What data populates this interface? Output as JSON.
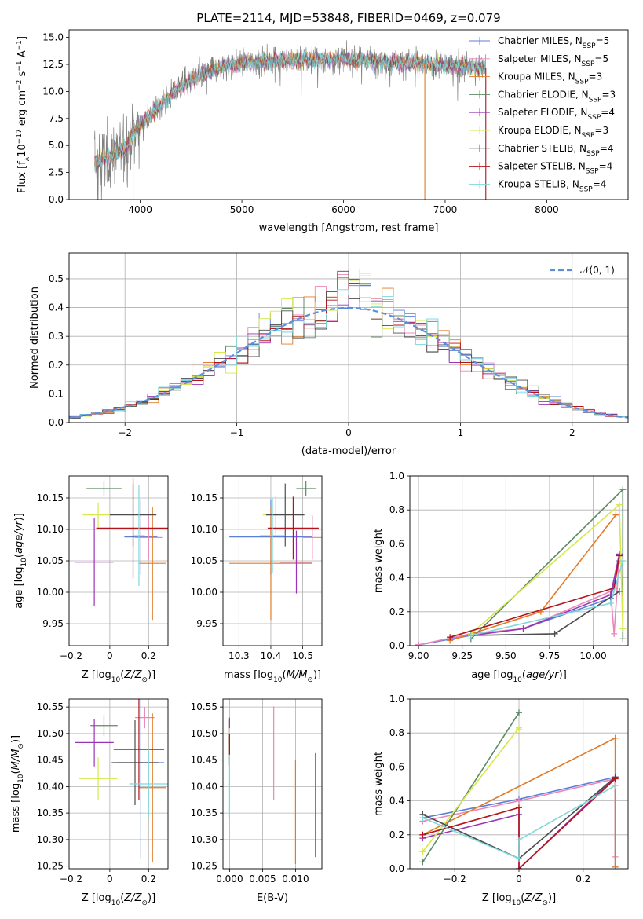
{
  "figure": {
    "title": "PLATE=2114, MJD=53848, FIBERID=0469, z=0.079"
  },
  "colors": {
    "Chabrier MILES": "#5b7ed8",
    "Salpeter MILES": "#e987b8",
    "Kroupa MILES": "#e07b2a",
    "Chabrier ELODIE": "#5c8a64",
    "Salpeter ELODIE": "#9b33b5",
    "Kroupa ELODIE": "#d6e84a",
    "Chabrier STELIB": "#4d4d4d",
    "Salpeter STELIB": "#b3141b",
    "Kroupa STELIB": "#7fd8dc",
    "data": "#808080",
    "normal": "#5b8fd8"
  },
  "chart_data": [
    {
      "id": "spectrum",
      "type": "line",
      "title": "PLATE=2114, MJD=53848, FIBERID=0469, z=0.079",
      "xlabel": "wavelength [Angstrom, rest frame]",
      "ylabel": "Flux [fλ10⁻¹⁷ erg cm⁻² s⁻¹ A⁻¹]",
      "xlim": [
        3300,
        8800
      ],
      "ylim": [
        0,
        15.7
      ],
      "xticks": [
        4000,
        5000,
        6000,
        7000,
        8000
      ],
      "yticks": [
        0.0,
        2.5,
        5.0,
        7.5,
        10.0,
        12.5,
        15.0
      ],
      "legend_position": "upper right",
      "legend": [
        {
          "label": "Chabrier MILES, N",
          "sub": "SSP",
          "tail": "=5",
          "color": "#5b7ed8"
        },
        {
          "label": "Salpeter MILES, N",
          "sub": "SSP",
          "tail": "=5",
          "color": "#e987b8"
        },
        {
          "label": "Kroupa MILES, N",
          "sub": "SSP",
          "tail": "=3",
          "color": "#e07b2a"
        },
        {
          "label": "Chabrier ELODIE, N",
          "sub": "SSP",
          "tail": "=3",
          "color": "#5c8a64"
        },
        {
          "label": "Salpeter ELODIE, N",
          "sub": "SSP",
          "tail": "=4",
          "color": "#9b33b5"
        },
        {
          "label": "Kroupa ELODIE, N",
          "sub": "SSP",
          "tail": "=3",
          "color": "#d6e84a"
        },
        {
          "label": "Chabrier STELIB, N",
          "sub": "SSP",
          "tail": "=4",
          "color": "#4d4d4d"
        },
        {
          "label": "Salpeter STELIB, N",
          "sub": "SSP",
          "tail": "=4",
          "color": "#b3141b"
        },
        {
          "label": "Kroupa STELIB, N",
          "sub": "SSP",
          "tail": "=4",
          "color": "#7fd8dc"
        }
      ],
      "continuum_x": [
        3550,
        3700,
        3850,
        4000,
        4200,
        4400,
        4600,
        4800,
        5000,
        5200,
        5400,
        5600,
        5800,
        6000,
        6200,
        6400,
        6600,
        6800,
        7000,
        7200,
        7400
      ],
      "continuum_y": [
        3.5,
        4.0,
        4.8,
        7.0,
        8.8,
        10.5,
        11.5,
        12.3,
        12.6,
        12.8,
        12.9,
        12.9,
        13.0,
        13.0,
        12.9,
        12.8,
        12.7,
        12.5,
        12.4,
        12.3,
        12.2
      ],
      "drops": [
        {
          "x": 3930,
          "color": "#d6e84a"
        },
        {
          "x": 6800,
          "color": "#e07b2a"
        },
        {
          "x": 7400,
          "color": "#b3141b"
        }
      ]
    },
    {
      "id": "residuals",
      "type": "histogram",
      "xlabel": "(data-model)/error",
      "ylabel": "Normed distribution",
      "xlim": [
        -2.5,
        2.5
      ],
      "ylim": [
        0,
        0.59
      ],
      "xticks": [
        -2,
        -1,
        0,
        1,
        2
      ],
      "yticks": [
        0.0,
        0.1,
        0.2,
        0.3,
        0.4,
        0.5
      ],
      "grid": true,
      "legend_position": "upper right",
      "reference_label": "𝒩(0, 1)",
      "bin_width": 0.1
    },
    {
      "id": "age-vs-Z",
      "type": "errorbar",
      "xlabel": "Z [log10(Z/Z⊙)]",
      "ylabel": "age  [log10(age/yr)]",
      "xlim": [
        -0.21,
        0.3
      ],
      "ylim": [
        9.915,
        10.185
      ],
      "xticks": [
        -0.2,
        0.0,
        0.2
      ],
      "yticks": [
        9.95,
        10.0,
        10.05,
        10.1,
        10.15
      ],
      "grid": true,
      "points": [
        {
          "model": "Chabrier MILES",
          "x": 0.16,
          "y": 10.088,
          "xerr": 0.085,
          "yerr": 0.06,
          "color": "#5b7ed8"
        },
        {
          "model": "Salpeter MILES",
          "x": 0.2,
          "y": 10.087,
          "xerr": 0.07,
          "yerr": 0.035,
          "color": "#e987b8"
        },
        {
          "model": "Kroupa MILES",
          "x": 0.22,
          "y": 10.046,
          "xerr": 0.07,
          "yerr": 0.09,
          "color": "#e07b2a"
        },
        {
          "model": "Chabrier ELODIE",
          "x": -0.03,
          "y": 10.165,
          "xerr": 0.09,
          "yerr": 0.012,
          "color": "#5c8a64"
        },
        {
          "model": "Salpeter ELODIE",
          "x": -0.08,
          "y": 10.048,
          "xerr": 0.1,
          "yerr": 0.07,
          "color": "#9b33b5"
        },
        {
          "model": "Kroupa ELODIE",
          "x": -0.06,
          "y": 10.123,
          "xerr": 0.08,
          "yerr": 0.02,
          "color": "#d6e84a"
        },
        {
          "model": "Chabrier STELIB",
          "x": 0.12,
          "y": 10.123,
          "xerr": 0.12,
          "yerr": 0.05,
          "color": "#4d4d4d"
        },
        {
          "model": "Salpeter STELIB",
          "x": 0.12,
          "y": 10.102,
          "xerr": 0.19,
          "yerr": 0.08,
          "color": "#b3141b"
        },
        {
          "model": "Kroupa STELIB",
          "x": 0.15,
          "y": 10.09,
          "xerr": 0.03,
          "yerr": 0.08,
          "color": "#7fd8dc"
        }
      ]
    },
    {
      "id": "age-vs-mass",
      "type": "errorbar",
      "xlabel": "mass [log10(M/M⊙)]",
      "ylabel": "",
      "xlim": [
        10.25,
        10.56
      ],
      "ylim": [
        9.915,
        10.185
      ],
      "xticks": [
        10.3,
        10.4,
        10.5
      ],
      "yticks": [
        9.95,
        10.0,
        10.05,
        10.1,
        10.15
      ],
      "grid": true,
      "points": [
        {
          "model": "Chabrier MILES",
          "x": 10.4,
          "y": 10.088,
          "xerr": 0.13,
          "yerr": 0.06,
          "color": "#5b7ed8"
        },
        {
          "model": "Salpeter MILES",
          "x": 10.53,
          "y": 10.087,
          "xerr": 0.03,
          "yerr": 0.035,
          "color": "#e987b8"
        },
        {
          "model": "Kroupa MILES",
          "x": 10.4,
          "y": 10.046,
          "xerr": 0.13,
          "yerr": 0.09,
          "color": "#e07b2a"
        },
        {
          "model": "Chabrier ELODIE",
          "x": 10.51,
          "y": 10.165,
          "xerr": 0.03,
          "yerr": 0.012,
          "color": "#5c8a64"
        },
        {
          "model": "Salpeter ELODIE",
          "x": 10.48,
          "y": 10.048,
          "xerr": 0.05,
          "yerr": 0.05,
          "color": "#9b33b5"
        },
        {
          "model": "Kroupa ELODIE",
          "x": 10.415,
          "y": 10.123,
          "xerr": 0.04,
          "yerr": 0.03,
          "color": "#d6e84a"
        },
        {
          "model": "Chabrier STELIB",
          "x": 10.445,
          "y": 10.123,
          "xerr": 0.06,
          "yerr": 0.05,
          "color": "#4d4d4d"
        },
        {
          "model": "Salpeter STELIB",
          "x": 10.47,
          "y": 10.102,
          "xerr": 0.08,
          "yerr": 0.05,
          "color": "#b3141b"
        },
        {
          "model": "Kroupa STELIB",
          "x": 10.405,
          "y": 10.09,
          "xerr": 0.04,
          "yerr": 0.06,
          "color": "#7fd8dc"
        }
      ]
    },
    {
      "id": "mass-weight-vs-age",
      "type": "line",
      "xlabel": "age  [log10(age/yr)]",
      "ylabel": "mass weight",
      "xlim": [
        8.95,
        10.2
      ],
      "ylim": [
        0,
        1.0
      ],
      "xticks": [
        9.0,
        9.25,
        9.5,
        9.75,
        10.0
      ],
      "xticklabels": [
        "9.00",
        "9.25",
        "9.50",
        "9.75",
        "10.00"
      ],
      "yticks": [
        0.0,
        0.2,
        0.4,
        0.6,
        0.8,
        1.0
      ],
      "grid": true,
      "series": [
        {
          "name": "Chabrier MILES",
          "color": "#5b7ed8",
          "x": [
            9.0,
            9.3,
            9.6,
            10.1,
            10.15
          ],
          "y": [
            0.005,
            0.06,
            0.1,
            0.28,
            0.5
          ]
        },
        {
          "name": "Salpeter MILES",
          "color": "#e987b8",
          "x": [
            9.0,
            9.3,
            9.6,
            10.1,
            10.12,
            10.15
          ],
          "y": [
            0.005,
            0.07,
            0.1,
            0.32,
            0.07,
            0.53
          ]
        },
        {
          "name": "Kroupa MILES",
          "color": "#e07b2a",
          "x": [
            9.18,
            9.7,
            10.13
          ],
          "y": [
            0.03,
            0.2,
            0.77
          ]
        },
        {
          "name": "Chabrier ELODIE",
          "color": "#5c8a64",
          "x": [
            9.3,
            10.17,
            10.17
          ],
          "y": [
            0.04,
            0.92,
            0.04
          ]
        },
        {
          "name": "Salpeter ELODIE",
          "color": "#9b33b5",
          "x": [
            9.3,
            9.6,
            10.1,
            10.15
          ],
          "y": [
            0.06,
            0.1,
            0.3,
            0.54
          ]
        },
        {
          "name": "Kroupa ELODIE",
          "color": "#d6e84a",
          "x": [
            9.3,
            10.15,
            10.17
          ],
          "y": [
            0.07,
            0.83,
            0.1
          ]
        },
        {
          "name": "Chabrier STELIB",
          "color": "#4d4d4d",
          "x": [
            9.3,
            9.78,
            10.15
          ],
          "y": [
            0.06,
            0.07,
            0.32
          ]
        },
        {
          "name": "Salpeter STELIB",
          "color": "#b3141b",
          "x": [
            9.18,
            10.12,
            10.15
          ],
          "y": [
            0.05,
            0.34,
            0.53
          ]
        },
        {
          "name": "Kroupa STELIB",
          "color": "#7fd8dc",
          "x": [
            9.3,
            10.1,
            10.17
          ],
          "y": [
            0.06,
            0.25,
            0.5
          ]
        }
      ]
    },
    {
      "id": "mass-vs-Z",
      "type": "errorbar",
      "xlabel": "Z [log10(Z/Z⊙)]",
      "ylabel": "mass [log10(M/M⊙)]",
      "xlim": [
        -0.21,
        0.3
      ],
      "ylim": [
        10.245,
        10.565
      ],
      "xticks": [
        -0.2,
        0.0,
        0.2
      ],
      "yticks": [
        10.25,
        10.3,
        10.35,
        10.4,
        10.45,
        10.5,
        10.55
      ],
      "grid": true,
      "points": [
        {
          "model": "Chabrier MILES",
          "x": 0.16,
          "y": 10.445,
          "xerr": 0.12,
          "yerr": 0.18,
          "color": "#5b7ed8"
        },
        {
          "model": "Salpeter MILES",
          "x": 0.18,
          "y": 10.53,
          "xerr": 0.05,
          "yerr": 0.02,
          "color": "#e987b8"
        },
        {
          "model": "Kroupa MILES",
          "x": 0.22,
          "y": 10.398,
          "xerr": 0.07,
          "yerr": 0.14,
          "color": "#e07b2a"
        },
        {
          "model": "Chabrier ELODIE",
          "x": -0.03,
          "y": 10.515,
          "xerr": 0.07,
          "yerr": 0.02,
          "color": "#5c8a64"
        },
        {
          "model": "Salpeter ELODIE",
          "x": -0.08,
          "y": 10.483,
          "xerr": 0.1,
          "yerr": 0.045,
          "color": "#9b33b5"
        },
        {
          "model": "Kroupa ELODIE",
          "x": -0.06,
          "y": 10.415,
          "xerr": 0.1,
          "yerr": 0.04,
          "color": "#d6e84a"
        },
        {
          "model": "Chabrier STELIB",
          "x": 0.13,
          "y": 10.445,
          "xerr": 0.12,
          "yerr": 0.08,
          "color": "#4d4d4d"
        },
        {
          "model": "Salpeter STELIB",
          "x": 0.15,
          "y": 10.47,
          "xerr": 0.13,
          "yerr": 0.095,
          "color": "#b3141b"
        },
        {
          "model": "Kroupa STELIB",
          "x": 0.2,
          "y": 10.405,
          "xerr": 0.1,
          "yerr": 0.065,
          "color": "#7fd8dc"
        }
      ]
    },
    {
      "id": "mass-vs-ebv",
      "type": "errorbar",
      "xlabel": "E(B-V)",
      "ylabel": "",
      "xlim": [
        -0.001,
        0.014
      ],
      "ylim": [
        10.245,
        10.565
      ],
      "xticks": [
        0.0,
        0.005,
        0.01
      ],
      "xticklabels": [
        "0.000",
        "0.005",
        "0.010"
      ],
      "yticks": [
        10.25,
        10.3,
        10.35,
        10.4,
        10.45,
        10.5,
        10.55
      ],
      "grid": true,
      "points": [
        {
          "model": "Chabrier MILES",
          "x": 0.013,
          "y": 10.365,
          "xerr": 0,
          "yerr": 0.098,
          "color": "#5b7ed8"
        },
        {
          "model": "Salpeter MILES",
          "x": 0.0067,
          "y": 10.463,
          "xerr": 0,
          "yerr": 0.088,
          "color": "#e987b8"
        },
        {
          "model": "Kroupa MILES",
          "x": 0.01,
          "y": 10.352,
          "xerr": 0,
          "yerr": 0.098,
          "color": "#e07b2a"
        },
        {
          "model": "Chabrier ELODIE",
          "x": 0.0,
          "y": 10.495,
          "xerr": 0,
          "yerr": 0.03,
          "color": "#5c8a64"
        },
        {
          "model": "Salpeter ELODIE",
          "x": 0.0,
          "y": 10.505,
          "xerr": 0,
          "yerr": 0.025,
          "color": "#9b33b5"
        },
        {
          "model": "Kroupa ELODIE",
          "x": 0.0,
          "y": 10.48,
          "xerr": 0,
          "yerr": 0.03,
          "color": "#d6e84a"
        },
        {
          "model": "Chabrier STELIB",
          "x": 0.0,
          "y": 10.47,
          "xerr": 0,
          "yerr": 0.03,
          "color": "#4d4d4d"
        },
        {
          "model": "Salpeter STELIB",
          "x": 0.0,
          "y": 10.48,
          "xerr": 0,
          "yerr": 0.02,
          "color": "#b3141b"
        },
        {
          "model": "Kroupa STELIB",
          "x": 0.0,
          "y": 10.4,
          "xerr": 0,
          "yerr": 0.06,
          "color": "#7fd8dc"
        }
      ]
    },
    {
      "id": "mass-weight-vs-Z",
      "type": "line",
      "xlabel": "Z [log10(Z/Z⊙)]",
      "ylabel": "mass weight",
      "xlim": [
        -0.34,
        0.34
      ],
      "ylim": [
        0,
        1.0
      ],
      "xticks": [
        -0.2,
        0.0,
        0.2
      ],
      "yticks": [
        0.0,
        0.2,
        0.4,
        0.6,
        0.8,
        1.0
      ],
      "grid": true,
      "series": [
        {
          "name": "Chabrier MILES",
          "color": "#5b7ed8",
          "x": [
            -0.3,
            0.0,
            0.3,
            0.3
          ],
          "y": [
            0.3,
            0.41,
            0.54,
            0.01
          ]
        },
        {
          "name": "Salpeter MILES",
          "color": "#e987b8",
          "x": [
            -0.3,
            0.0,
            0.3,
            0.3
          ],
          "y": [
            0.28,
            0.4,
            0.53,
            0.07
          ]
        },
        {
          "name": "Kroupa MILES",
          "color": "#e07b2a",
          "x": [
            -0.3,
            0.3,
            0.3
          ],
          "y": [
            0.2,
            0.77,
            0.01
          ]
        },
        {
          "name": "Chabrier ELODIE",
          "color": "#5c8a64",
          "x": [
            -0.3,
            0.0
          ],
          "y": [
            0.04,
            0.92
          ]
        },
        {
          "name": "Salpeter ELODIE",
          "color": "#9b33b5",
          "x": [
            -0.3,
            0.0,
            0.0,
            0.3
          ],
          "y": [
            0.18,
            0.32,
            0.0,
            0.54
          ]
        },
        {
          "name": "Kroupa ELODIE",
          "color": "#d6e84a",
          "x": [
            -0.3,
            0.0,
            0.0
          ],
          "y": [
            0.1,
            0.83,
            0.82
          ]
        },
        {
          "name": "Chabrier STELIB",
          "color": "#4d4d4d",
          "x": [
            -0.3,
            0.0,
            0.3
          ],
          "y": [
            0.32,
            0.06,
            0.54
          ]
        },
        {
          "name": "Salpeter STELIB",
          "color": "#b3141b",
          "x": [
            -0.3,
            0.0,
            0.0,
            0.3
          ],
          "y": [
            0.2,
            0.36,
            0.0,
            0.53
          ]
        },
        {
          "name": "Kroupa STELIB",
          "color": "#7fd8dc",
          "x": [
            -0.3,
            0.0,
            0.0,
            0.3
          ],
          "y": [
            0.3,
            0.06,
            0.17,
            0.49
          ]
        }
      ]
    }
  ]
}
